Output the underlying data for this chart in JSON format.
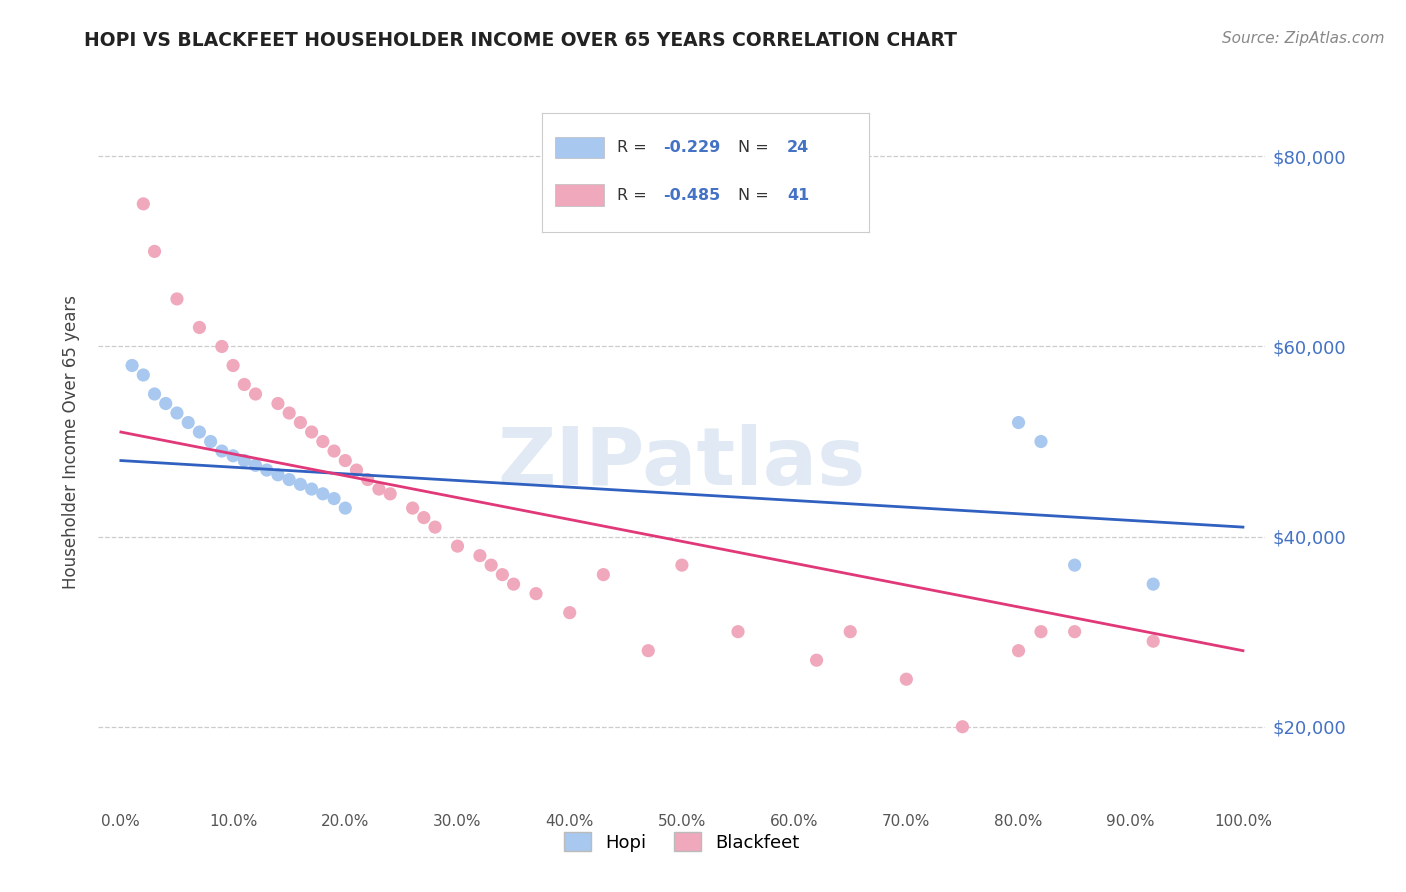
{
  "title": "HOPI VS BLACKFEET HOUSEHOLDER INCOME OVER 65 YEARS CORRELATION CHART",
  "source": "Source: ZipAtlas.com",
  "ylabel": "Householder Income Over 65 years",
  "xlim": [
    -2,
    102
  ],
  "ylim": [
    12000,
    88000
  ],
  "hopi_R": -0.229,
  "hopi_N": 24,
  "blackfeet_R": -0.485,
  "blackfeet_N": 41,
  "hopi_color": "#A8C8F0",
  "blackfeet_color": "#F0A8BC",
  "hopi_line_color": "#3060C0",
  "blackfeet_line_color": "#E03878",
  "watermark": "ZIPatlas",
  "hopi_x": [
    1,
    2,
    3,
    4,
    5,
    6,
    7,
    8,
    9,
    10,
    11,
    12,
    13,
    14,
    15,
    16,
    17,
    18,
    19,
    20,
    80,
    82,
    85,
    92
  ],
  "hopi_y": [
    58000,
    57000,
    55000,
    54000,
    53000,
    52000,
    51000,
    50000,
    49000,
    48500,
    48000,
    47500,
    47000,
    46500,
    46000,
    45500,
    45000,
    44500,
    44000,
    43000,
    52000,
    50000,
    37000,
    35000
  ],
  "blackfeet_x": [
    2,
    3,
    5,
    7,
    9,
    10,
    11,
    12,
    14,
    15,
    16,
    17,
    18,
    19,
    20,
    21,
    22,
    23,
    24,
    26,
    27,
    28,
    30,
    32,
    33,
    34,
    35,
    37,
    40,
    43,
    47,
    50,
    55,
    62,
    65,
    70,
    75,
    80,
    82,
    85,
    92
  ],
  "blackfeet_y": [
    75000,
    70000,
    65000,
    62000,
    60000,
    58000,
    56000,
    55000,
    54000,
    53000,
    52000,
    51000,
    50000,
    49000,
    48000,
    47000,
    46000,
    45000,
    44500,
    43000,
    42000,
    41000,
    39000,
    38000,
    37000,
    36000,
    35000,
    34000,
    32000,
    36000,
    28000,
    37000,
    30000,
    27000,
    30000,
    25000,
    20000,
    28000,
    30000,
    30000,
    29000
  ],
  "hopi_trendline_x": [
    0,
    100
  ],
  "hopi_trendline_y": [
    48000,
    41000
  ],
  "blackfeet_trendline_x": [
    0,
    100
  ],
  "blackfeet_trendline_y": [
    51000,
    28000
  ]
}
